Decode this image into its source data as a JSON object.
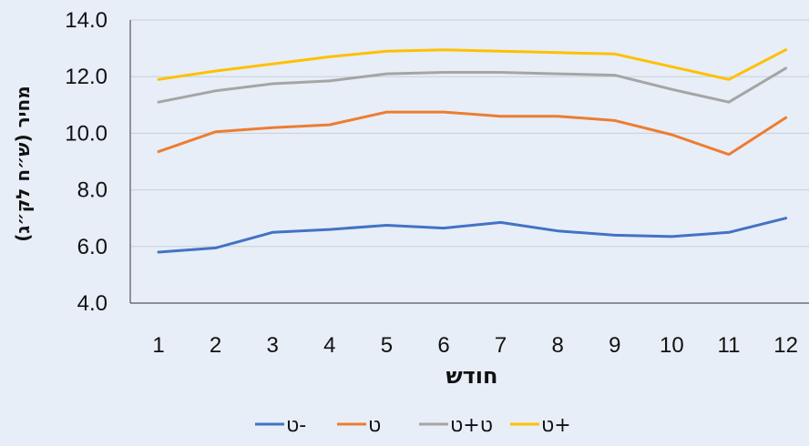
{
  "chart_data": {
    "type": "line",
    "title": "",
    "xlabel": "חודש",
    "ylabel": "מחיר (ש״ח לק״ג)",
    "x": [
      1,
      2,
      3,
      4,
      5,
      6,
      7,
      8,
      9,
      10,
      11,
      12
    ],
    "ylim": [
      4.0,
      14.0
    ],
    "yticks": [
      "4.0",
      "6.0",
      "8.0",
      "10.0",
      "12.0",
      "14.0"
    ],
    "grid": true,
    "legend_position": "bottom",
    "series": [
      {
        "name": "ט-",
        "color": "#4472c4",
        "values": [
          5.8,
          5.95,
          6.5,
          6.6,
          6.75,
          6.65,
          6.85,
          6.55,
          6.4,
          6.35,
          6.5,
          7.0
        ]
      },
      {
        "name": "ט",
        "color": "#ed7d31",
        "values": [
          9.35,
          10.05,
          10.2,
          10.3,
          10.75,
          10.75,
          10.6,
          10.6,
          10.45,
          9.95,
          9.25,
          10.55
        ]
      },
      {
        "name": "ט+ט",
        "color": "#a5a5a5",
        "values": [
          11.1,
          11.5,
          11.75,
          11.85,
          12.1,
          12.15,
          12.15,
          12.1,
          12.05,
          11.55,
          11.1,
          12.3
        ]
      },
      {
        "name": "ט+",
        "color": "#ffc000",
        "values": [
          11.9,
          12.2,
          12.45,
          12.7,
          12.9,
          12.95,
          12.9,
          12.85,
          12.8,
          12.35,
          11.9,
          12.95
        ]
      }
    ]
  }
}
